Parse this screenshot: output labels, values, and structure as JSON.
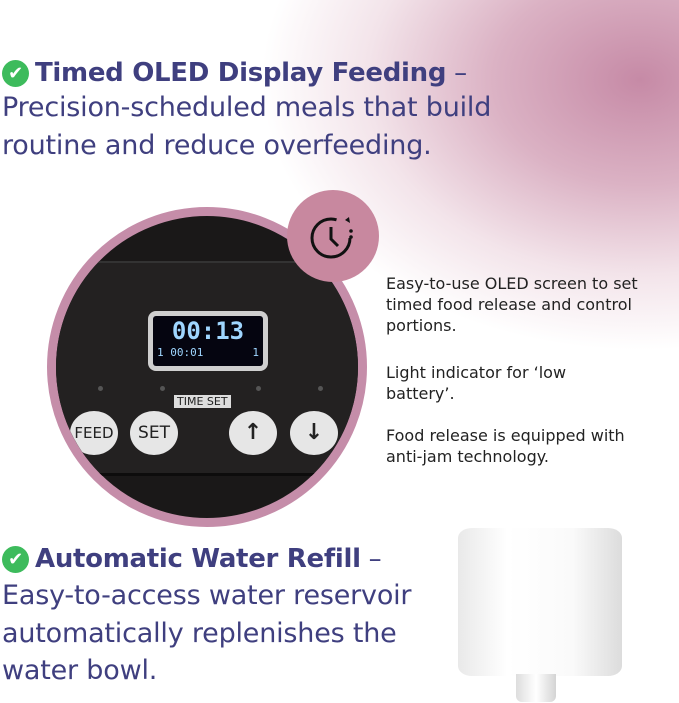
{
  "section1": {
    "icon": "check-circle-icon",
    "title": "Timed OLED Display Feeding",
    "dash": " –",
    "lines": [
      "Precision-scheduled meals that build",
      "routine and reduce overfeeding."
    ]
  },
  "device": {
    "display_time": "00:13",
    "display_left": "1 00:01",
    "display_right": "1",
    "buttons": [
      "FEED",
      "SET"
    ],
    "time_set_label": "TIME  SET",
    "up_icon": "arrow-up-icon",
    "down_icon": "arrow-down-icon"
  },
  "badge_icon": "clock-timer-icon",
  "descriptions": [
    "Easy-to-use OLED screen to set timed food release and control portions.",
    "Light indicator for ‘low battery’.",
    "Food release is equipped with anti-jam technology."
  ],
  "section2": {
    "icon": "check-circle-icon",
    "title": "Automatic Water Refill",
    "dash": " –",
    "lines": [
      "Easy-to-access water reservoir",
      "automatically replenishes the",
      "water bowl."
    ]
  },
  "colors": {
    "text": "#3f3f7f",
    "accent": "#c58da9",
    "check": "#3dbb5c"
  }
}
